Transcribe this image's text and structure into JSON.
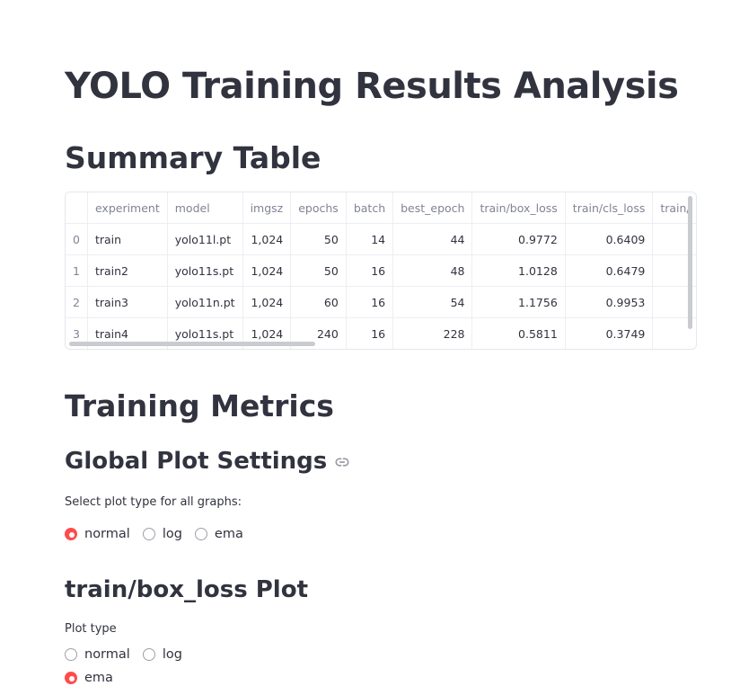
{
  "page": {
    "title": "YOLO Training Results Analysis",
    "summary_heading": "Summary Table",
    "metrics_heading": "Training Metrics",
    "global_heading": "Global Plot Settings",
    "global_label": "Select plot type for all graphs:",
    "plot_heading": "train/box_loss Plot",
    "plot_label": "Plot type"
  },
  "table": {
    "columns": [
      "",
      "experiment",
      "model",
      "imgsz",
      "epochs",
      "batch",
      "best_epoch",
      "train/box_loss",
      "train/cls_loss",
      "train/"
    ],
    "rows": [
      [
        "0",
        "train",
        "yolo11l.pt",
        "1,024",
        "50",
        "14",
        "44",
        "0.9772",
        "0.6409",
        ""
      ],
      [
        "1",
        "train2",
        "yolo11s.pt",
        "1,024",
        "50",
        "16",
        "48",
        "1.0128",
        "0.6479",
        ""
      ],
      [
        "2",
        "train3",
        "yolo11n.pt",
        "1,024",
        "60",
        "16",
        "54",
        "1.1756",
        "0.9953",
        ""
      ],
      [
        "3",
        "train4",
        "yolo11s.pt",
        "1,024",
        "240",
        "16",
        "228",
        "0.5811",
        "0.3749",
        ""
      ]
    ]
  },
  "global_radio": {
    "options": [
      "normal",
      "log",
      "ema"
    ],
    "selected": "normal"
  },
  "plot_radio": {
    "options": [
      "normal",
      "log",
      "ema"
    ],
    "selected": "ema"
  },
  "colors": {
    "accent": "#ff4b4b",
    "text": "#31333f",
    "muted": "#808495"
  }
}
